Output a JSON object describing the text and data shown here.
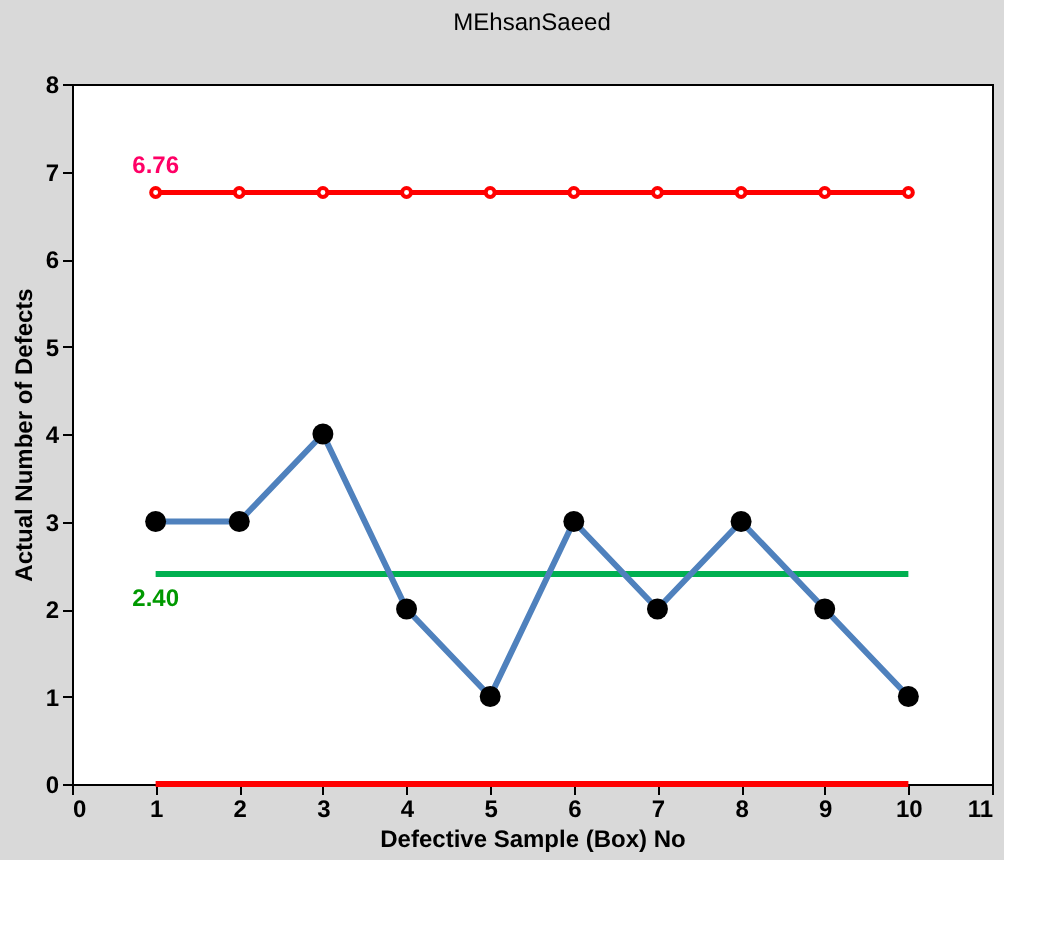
{
  "chart_data": {
    "type": "line",
    "title": "MEhsanSaeed",
    "xlabel": "Defective Sample (Box) No",
    "ylabel": "Actual Number of Defects",
    "x": [
      1,
      2,
      3,
      4,
      5,
      6,
      7,
      8,
      9,
      10
    ],
    "series": [
      {
        "color": "#ff0000",
        "values": [
          6.76,
          6.76,
          6.76,
          6.76,
          6.76,
          6.76,
          6.76,
          6.76,
          6.76,
          6.76
        ],
        "marker": "circle"
      },
      {
        "color": "#00b050",
        "values": [
          2.4,
          2.4,
          2.4,
          2.4,
          2.4,
          2.4,
          2.4,
          2.4,
          2.4,
          2.4
        ],
        "marker": "none"
      },
      {
        "color": "#ff0000",
        "values": [
          0,
          0,
          0,
          0,
          0,
          0,
          0,
          0,
          0,
          0
        ],
        "marker": "none"
      },
      {
        "color": "#4f81bd",
        "values": [
          3,
          3,
          4,
          2,
          1,
          3,
          2,
          3,
          2,
          1
        ],
        "marker": "circle"
      }
    ],
    "annotations": [
      {
        "text": "6.76",
        "x": 1,
        "y": 6.76
      },
      {
        "text": "2.40",
        "x": 1,
        "y": 2.4
      }
    ],
    "xlim": [
      0,
      11
    ],
    "xticks": [
      0,
      1,
      2,
      3,
      4,
      5,
      6,
      7,
      8,
      9,
      10,
      11
    ],
    "ylim": [
      0,
      8
    ],
    "yticks": [
      0,
      1,
      2,
      3,
      4,
      5,
      6,
      7,
      8
    ],
    "grid": false
  }
}
